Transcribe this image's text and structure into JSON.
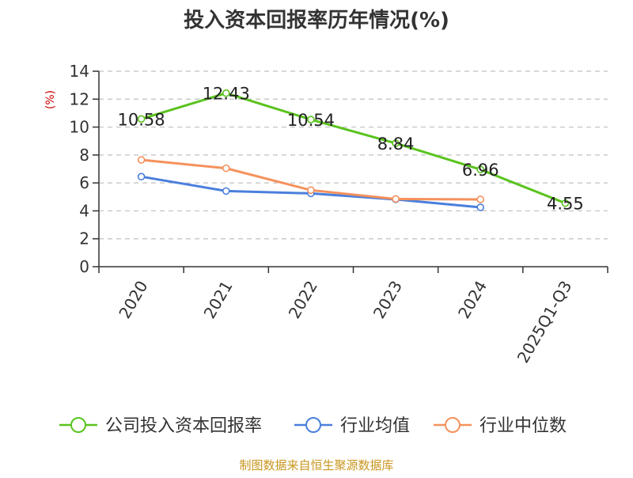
{
  "colors": {
    "company": "#5ac31e",
    "industry_avg": "#4a7fdc",
    "industry_median": "#f5915c",
    "source": "#c8961e",
    "ylabel": "#cc0000",
    "grid": "#c0c0c0",
    "axis": "#333333"
  },
  "chart_data": {
    "type": "line",
    "title": "投入资本回报率历年情况(%)",
    "ylabel": "(%)",
    "xlabel": "",
    "categories": [
      "2020",
      "2021",
      "2022",
      "2023",
      "2024",
      "2025Q1-Q3"
    ],
    "ylim": [
      0,
      14
    ],
    "yticks": [
      0,
      2,
      4,
      6,
      8,
      10,
      12,
      14
    ],
    "grid": "horizontal dashed",
    "legend": "bottom",
    "series": [
      {
        "name": "公司投入资本回报率",
        "color_key": "company",
        "values": [
          10.58,
          12.43,
          10.54,
          8.84,
          6.96,
          4.55
        ],
        "labels": [
          "10.58",
          "12.43",
          "10.54",
          "8.84",
          "6.96",
          "4.55"
        ]
      },
      {
        "name": "行业均值",
        "color_key": "industry_avg",
        "values": [
          6.45,
          5.42,
          5.25,
          4.82,
          4.25,
          null
        ]
      },
      {
        "name": "行业中位数",
        "color_key": "industry_median",
        "values": [
          7.65,
          7.05,
          5.48,
          4.85,
          4.82,
          null
        ]
      }
    ],
    "source": "制图数据来自恒生聚源数据库"
  }
}
